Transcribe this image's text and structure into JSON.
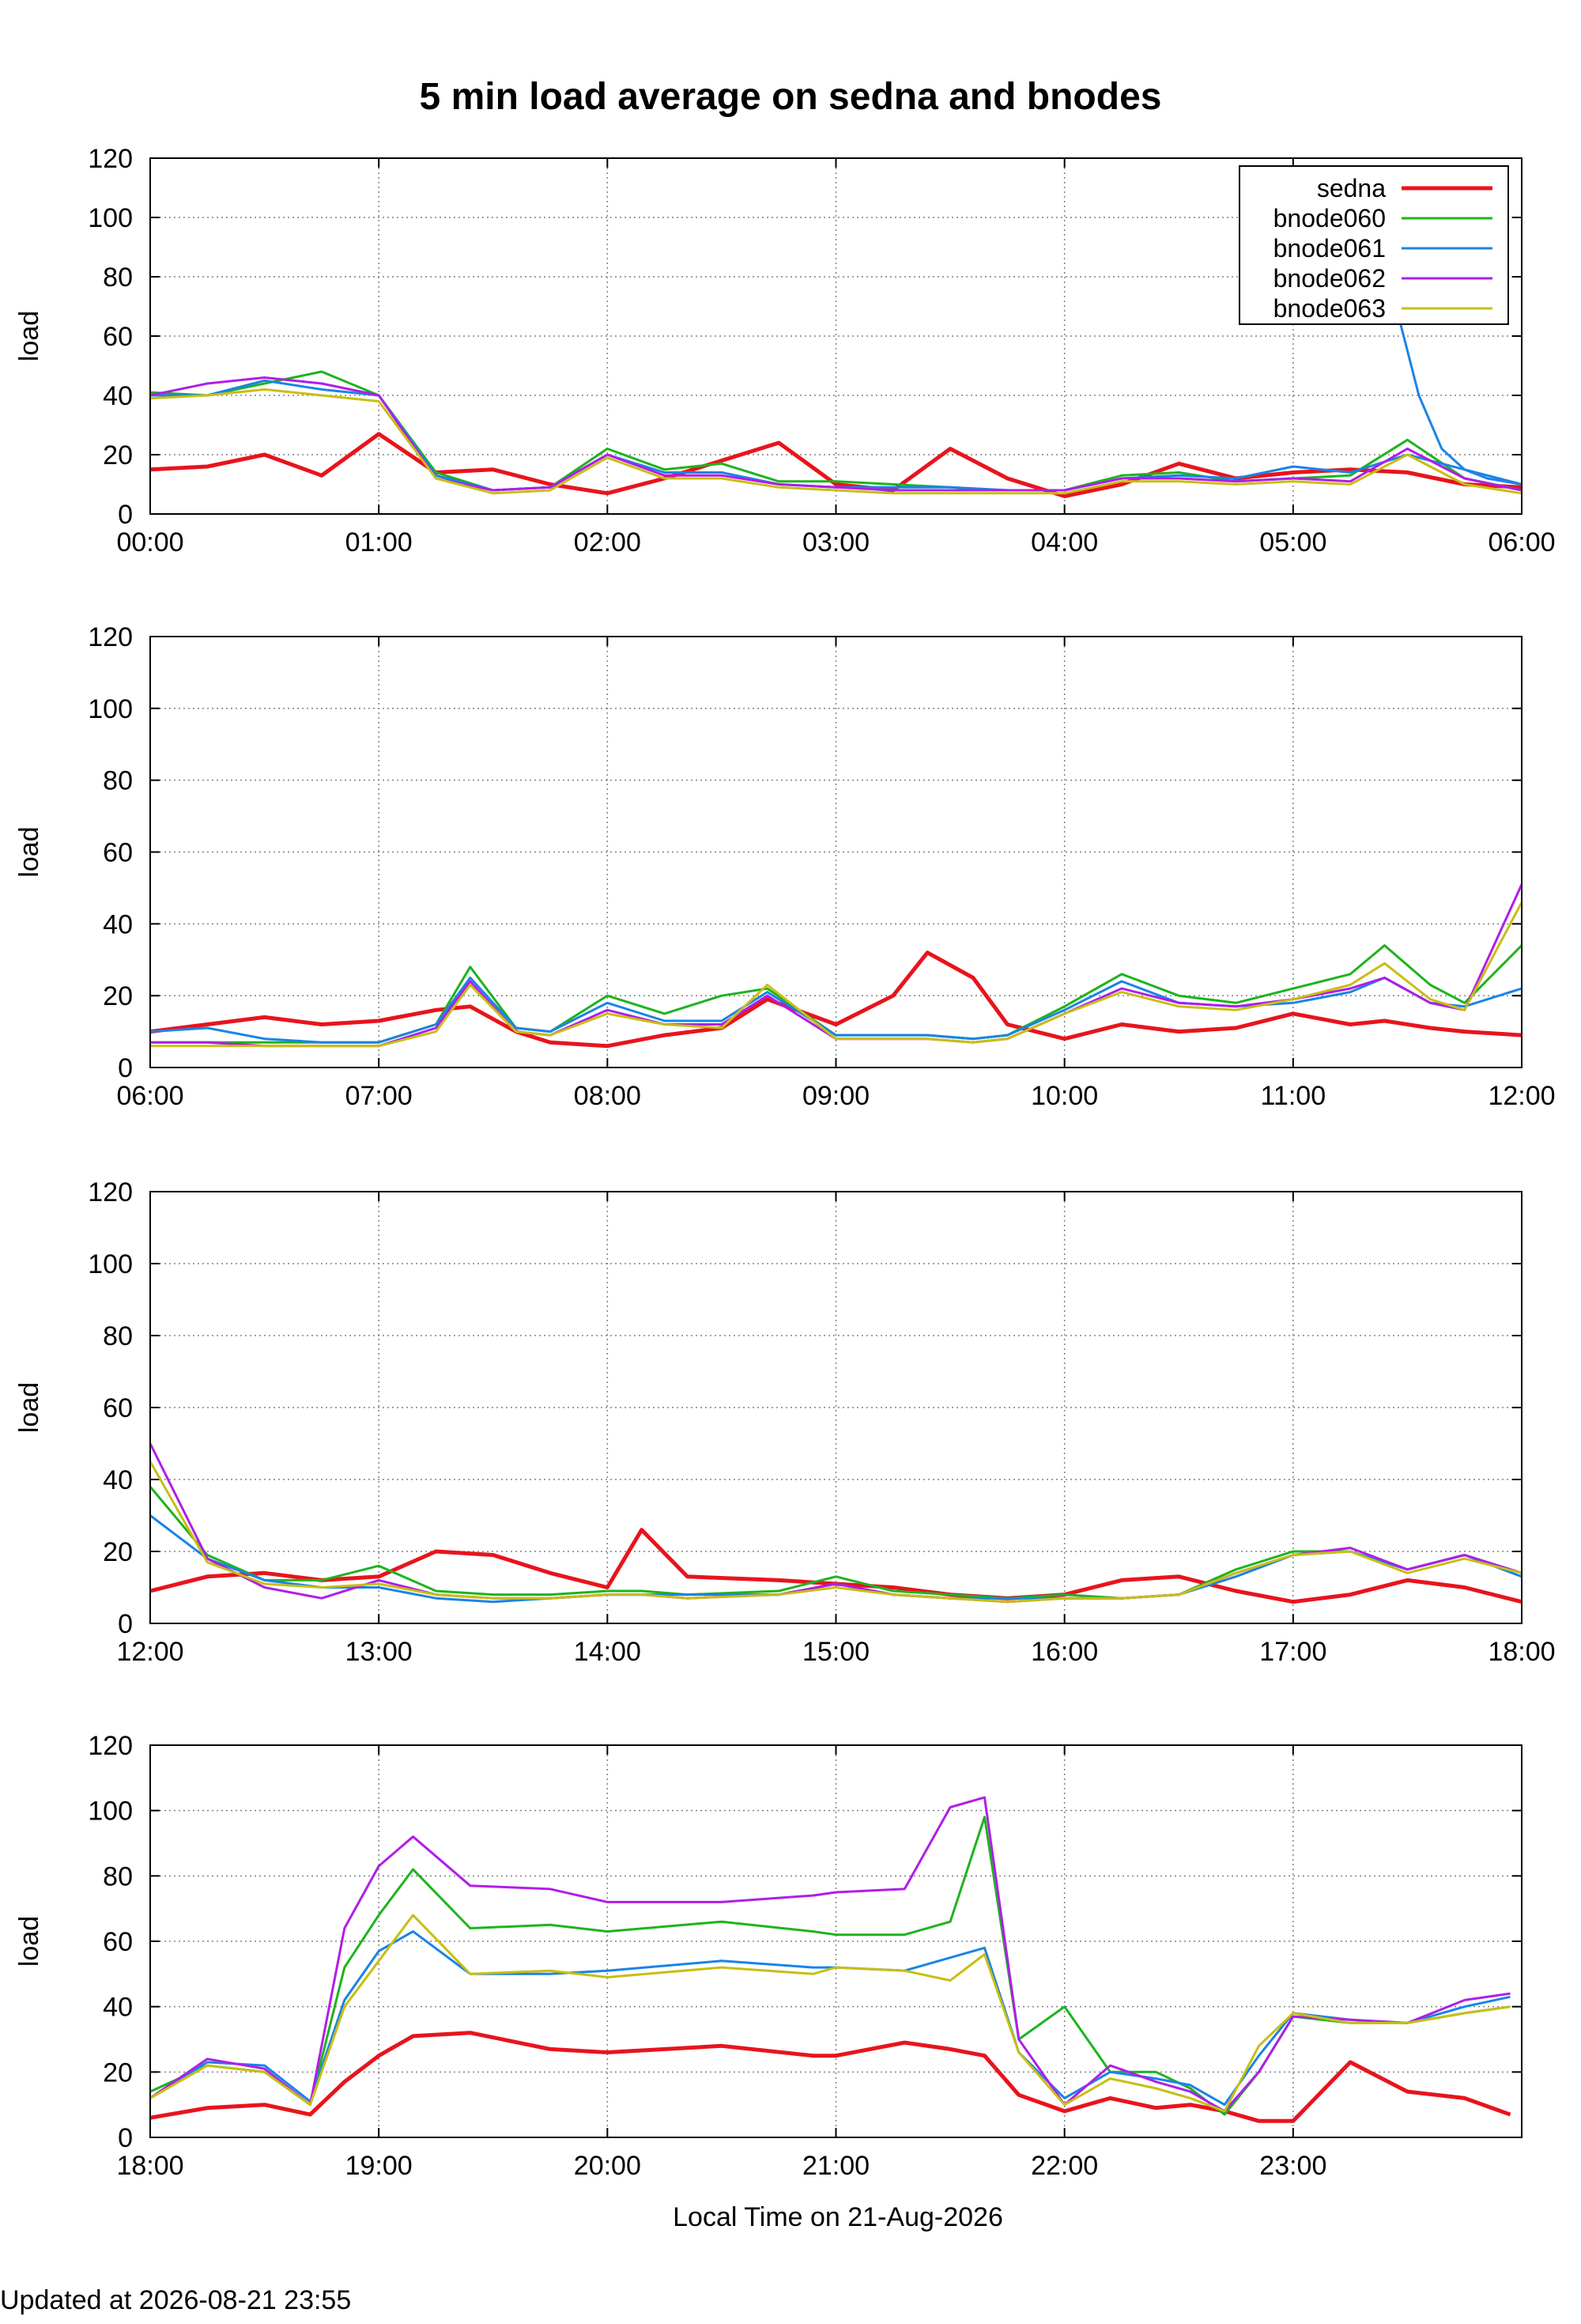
{
  "title": "5 min load average on sedna and bnodes",
  "footer": "Updated at 2026-08-21 23:55",
  "colors": {
    "sedna": "#e8141c",
    "bnode060": "#1db41d",
    "bnode061": "#1a84e6",
    "bnode062": "#b01ee8",
    "bnode063": "#c8be14",
    "grid": "#808080",
    "axis": "#000000"
  },
  "chart_data": [
    {
      "type": "line",
      "ylabel": "load",
      "xlabel": "",
      "ylim": [
        0,
        120
      ],
      "yticks": [
        "0",
        "20",
        "40",
        "60",
        "80",
        "100",
        "120"
      ],
      "xlim": [
        0,
        6
      ],
      "xticks": [
        "00:00",
        "01:00",
        "02:00",
        "03:00",
        "04:00",
        "05:00",
        "06:00"
      ],
      "grid": true,
      "legend": "top-right",
      "x": [
        0,
        0.25,
        0.5,
        0.75,
        1,
        1.25,
        1.5,
        1.75,
        2,
        2.25,
        2.5,
        2.75,
        3,
        3.25,
        3.5,
        3.75,
        4,
        4.25,
        4.5,
        4.75,
        5,
        5.25,
        5.5,
        5.75,
        6
      ],
      "series": [
        {
          "name": "sedna",
          "key": "sedna",
          "values": [
            15,
            16,
            20,
            13,
            27,
            14,
            15,
            10,
            7,
            12,
            18,
            24,
            10,
            8,
            22,
            12,
            6,
            10,
            17,
            12,
            14,
            15,
            14,
            10,
            9
          ]
        },
        {
          "name": "bnode060",
          "key": "bnode060",
          "values": [
            41,
            40,
            44,
            48,
            40,
            14,
            8,
            9,
            22,
            15,
            17,
            11,
            11,
            10,
            9,
            8,
            8,
            13,
            14,
            11,
            12,
            13,
            25,
            12,
            8
          ]
        },
        {
          "name": "bnode061",
          "key": "bnode061",
          "values": [
            40,
            40,
            45,
            42,
            40,
            13,
            8,
            9,
            20,
            14,
            14,
            10,
            9,
            9,
            9,
            8,
            8,
            12,
            13,
            12,
            16,
            14,
            20,
            15,
            10
          ]
        },
        {
          "name": "bnode062",
          "key": "bnode062",
          "values": [
            40,
            44,
            46,
            44,
            40,
            12,
            8,
            9,
            20,
            13,
            13,
            10,
            9,
            8,
            8,
            8,
            8,
            12,
            12,
            11,
            12,
            11,
            22,
            12,
            8
          ]
        },
        {
          "name": "bnode063",
          "key": "bnode063",
          "values": [
            39,
            40,
            42,
            40,
            38,
            12,
            7,
            8,
            19,
            12,
            12,
            9,
            8,
            7,
            7,
            7,
            7,
            11,
            11,
            10,
            11,
            10,
            20,
            10,
            7
          ]
        }
      ],
      "extra_series": [
        {
          "key": "bnode061",
          "x": [
            5.45,
            5.55,
            5.65,
            5.75,
            5.85,
            6
          ],
          "values": [
            70,
            40,
            22,
            15,
            12,
            10
          ]
        }
      ]
    },
    {
      "type": "line",
      "ylabel": "load",
      "xlabel": "",
      "ylim": [
        0,
        120
      ],
      "yticks": [
        "0",
        "20",
        "40",
        "60",
        "80",
        "100",
        "120"
      ],
      "xlim": [
        6,
        12
      ],
      "xticks": [
        "06:00",
        "07:00",
        "08:00",
        "09:00",
        "10:00",
        "11:00",
        "12:00"
      ],
      "grid": true,
      "x": [
        6,
        6.25,
        6.5,
        6.75,
        7,
        7.25,
        7.4,
        7.6,
        7.75,
        8,
        8.25,
        8.5,
        8.7,
        9,
        9.25,
        9.4,
        9.6,
        9.75,
        10,
        10.25,
        10.5,
        10.75,
        11,
        11.25,
        11.4,
        11.6,
        11.75,
        12
      ],
      "series": [
        {
          "name": "sedna",
          "key": "sedna",
          "values": [
            10,
            12,
            14,
            12,
            13,
            16,
            17,
            10,
            7,
            6,
            9,
            11,
            19,
            12,
            20,
            32,
            25,
            12,
            8,
            12,
            10,
            11,
            15,
            12,
            13,
            11,
            10,
            9
          ]
        },
        {
          "name": "bnode060",
          "key": "bnode060",
          "values": [
            7,
            7,
            7,
            7,
            7,
            12,
            28,
            11,
            10,
            20,
            15,
            20,
            22,
            9,
            9,
            9,
            8,
            9,
            17,
            26,
            20,
            18,
            22,
            26,
            34,
            23,
            18,
            34
          ]
        },
        {
          "name": "bnode061",
          "key": "bnode061",
          "values": [
            10,
            11,
            8,
            7,
            7,
            12,
            25,
            11,
            10,
            18,
            13,
            13,
            21,
            9,
            9,
            9,
            8,
            9,
            16,
            24,
            18,
            17,
            18,
            21,
            25,
            18,
            17,
            22
          ]
        },
        {
          "name": "bnode062",
          "key": "bnode062",
          "values": [
            7,
            7,
            6,
            6,
            6,
            11,
            24,
            10,
            9,
            16,
            12,
            12,
            20,
            8,
            8,
            8,
            7,
            8,
            15,
            22,
            18,
            17,
            19,
            22,
            25,
            18,
            16,
            51
          ]
        },
        {
          "name": "bnode063",
          "key": "bnode063",
          "values": [
            6,
            6,
            6,
            6,
            6,
            10,
            23,
            10,
            9,
            15,
            12,
            11,
            23,
            8,
            8,
            8,
            7,
            8,
            15,
            21,
            17,
            16,
            19,
            23,
            29,
            19,
            16,
            46
          ]
        }
      ]
    },
    {
      "type": "line",
      "ylabel": "load",
      "xlabel": "",
      "ylim": [
        0,
        120
      ],
      "yticks": [
        "0",
        "20",
        "40",
        "60",
        "80",
        "100",
        "120"
      ],
      "xlim": [
        12,
        18
      ],
      "xticks": [
        "12:00",
        "13:00",
        "14:00",
        "15:00",
        "16:00",
        "17:00",
        "18:00"
      ],
      "grid": true,
      "x": [
        12,
        12.25,
        12.5,
        12.75,
        13,
        13.25,
        13.5,
        13.75,
        14,
        14.15,
        14.35,
        14.75,
        15,
        15.25,
        15.5,
        15.75,
        16,
        16.25,
        16.5,
        16.75,
        17,
        17.25,
        17.5,
        17.75,
        18
      ],
      "series": [
        {
          "name": "sedna",
          "key": "sedna",
          "values": [
            9,
            13,
            14,
            12,
            13,
            20,
            19,
            14,
            10,
            26,
            13,
            12,
            11,
            10,
            8,
            7,
            8,
            12,
            13,
            9,
            6,
            8,
            12,
            10,
            6
          ]
        },
        {
          "name": "bnode060",
          "key": "bnode060",
          "values": [
            38,
            19,
            12,
            12,
            16,
            9,
            8,
            8,
            9,
            9,
            8,
            9,
            13,
            9,
            8,
            7,
            8,
            7,
            8,
            15,
            20,
            20,
            15,
            19,
            14
          ]
        },
        {
          "name": "bnode061",
          "key": "bnode061",
          "values": [
            30,
            18,
            12,
            10,
            10,
            7,
            6,
            7,
            8,
            8,
            8,
            8,
            11,
            8,
            7,
            7,
            7,
            7,
            8,
            13,
            19,
            20,
            15,
            19,
            13
          ]
        },
        {
          "name": "bnode062",
          "key": "bnode062",
          "values": [
            50,
            18,
            10,
            7,
            12,
            8,
            7,
            7,
            8,
            8,
            7,
            8,
            11,
            8,
            7,
            6,
            7,
            7,
            8,
            14,
            19,
            21,
            15,
            19,
            14
          ]
        },
        {
          "name": "bnode063",
          "key": "bnode063",
          "values": [
            45,
            17,
            11,
            10,
            11,
            8,
            7,
            7,
            8,
            8,
            7,
            8,
            10,
            8,
            7,
            6,
            7,
            7,
            8,
            14,
            19,
            20,
            14,
            18,
            14
          ]
        }
      ]
    },
    {
      "type": "line",
      "ylabel": "load",
      "xlabel": "Local Time on 21-Aug-2026",
      "ylim": [
        0,
        120
      ],
      "yticks": [
        "0",
        "20",
        "40",
        "60",
        "80",
        "100",
        "120"
      ],
      "xlim": [
        18,
        24
      ],
      "xticks": [
        "18:00",
        "19:00",
        "20:00",
        "21:00",
        "22:00",
        "23:00"
      ],
      "grid": true,
      "x": [
        18,
        18.25,
        18.5,
        18.7,
        18.85,
        19,
        19.15,
        19.4,
        19.75,
        20,
        20.5,
        20.9,
        21,
        21.3,
        21.5,
        21.65,
        21.8,
        22,
        22.2,
        22.4,
        22.55,
        22.7,
        22.85,
        23,
        23.25,
        23.5,
        23.75,
        23.95
      ],
      "series": [
        {
          "name": "sedna",
          "key": "sedna",
          "values": [
            6,
            9,
            10,
            7,
            17,
            25,
            31,
            32,
            27,
            26,
            28,
            25,
            25,
            29,
            27,
            25,
            13,
            8,
            12,
            9,
            10,
            8,
            5,
            5,
            23,
            14,
            12,
            7
          ]
        },
        {
          "name": "bnode060",
          "key": "bnode060",
          "values": [
            14,
            22,
            20,
            10,
            52,
            68,
            82,
            64,
            65,
            63,
            66,
            63,
            62,
            62,
            66,
            98,
            30,
            40,
            20,
            20,
            15,
            7,
            20,
            37,
            35,
            35,
            38,
            40
          ]
        },
        {
          "name": "bnode061",
          "key": "bnode061",
          "values": [
            12,
            23,
            22,
            11,
            42,
            57,
            63,
            50,
            50,
            51,
            54,
            52,
            52,
            51,
            55,
            58,
            26,
            12,
            20,
            18,
            16,
            10,
            25,
            38,
            36,
            35,
            40,
            43
          ]
        },
        {
          "name": "bnode062",
          "key": "bnode062",
          "values": [
            12,
            24,
            21,
            10,
            64,
            83,
            92,
            77,
            76,
            72,
            72,
            74,
            75,
            76,
            101,
            104,
            30,
            10,
            22,
            17,
            14,
            8,
            20,
            37,
            36,
            35,
            42,
            44
          ]
        },
        {
          "name": "bnode063",
          "key": "bnode063",
          "values": [
            12,
            22,
            20,
            10,
            40,
            54,
            68,
            50,
            51,
            49,
            52,
            50,
            52,
            51,
            48,
            56,
            26,
            10,
            18,
            15,
            12,
            8,
            28,
            38,
            35,
            35,
            38,
            40
          ]
        }
      ]
    }
  ],
  "legend": [
    {
      "label": "sedna",
      "key": "sedna"
    },
    {
      "label": "bnode060",
      "key": "bnode060"
    },
    {
      "label": "bnode061",
      "key": "bnode061"
    },
    {
      "label": "bnode062",
      "key": "bnode062"
    },
    {
      "label": "bnode063",
      "key": "bnode063"
    }
  ]
}
